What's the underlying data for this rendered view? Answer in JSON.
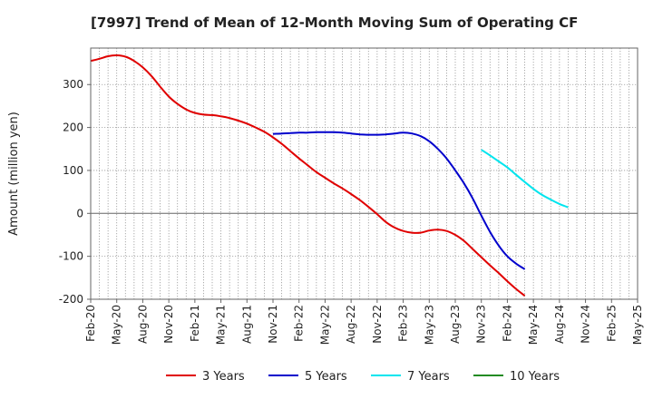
{
  "chart_data": {
    "type": "line",
    "title": "[7997]  Trend of Mean of 12-Month Moving Sum of Operating CF",
    "xlabel": "",
    "ylabel": "Amount (million yen)",
    "ylim": [
      -200,
      385
    ],
    "yticks": [
      -200,
      -100,
      0,
      100,
      200,
      300
    ],
    "x_tick_labels": [
      "Feb-20",
      "May-20",
      "Aug-20",
      "Nov-20",
      "Feb-21",
      "May-21",
      "Aug-21",
      "Nov-21",
      "Feb-22",
      "May-22",
      "Aug-22",
      "Nov-22",
      "Feb-23",
      "May-23",
      "Aug-23",
      "Nov-23",
      "Feb-24",
      "May-24",
      "Aug-24",
      "Nov-24",
      "Feb-25",
      "May-25"
    ],
    "x_start": "Feb-20",
    "x_end": "May-25",
    "grid": true,
    "legend_position": "bottom",
    "series": [
      {
        "name": "3 Years",
        "color": "#e00000",
        "start": "Feb-20",
        "values": [
          355,
          360,
          366,
          368,
          365,
          355,
          340,
          320,
          295,
          272,
          255,
          242,
          234,
          230,
          229,
          226,
          222,
          216,
          209,
          200,
          190,
          177,
          162,
          145,
          128,
          112,
          96,
          83,
          70,
          58,
          45,
          31,
          15,
          -2,
          -20,
          -33,
          -41,
          -45,
          -45,
          -40,
          -38,
          -41,
          -50,
          -64,
          -83,
          -102,
          -121,
          -139,
          -158,
          -176,
          -192
        ]
      },
      {
        "name": "5 Years",
        "color": "#0000cc",
        "start": "Nov-21",
        "values": [
          185,
          186,
          187,
          188,
          188,
          189,
          189,
          189,
          188,
          186,
          184,
          183,
          183,
          184,
          186,
          188,
          186,
          180,
          168,
          150,
          128,
          100,
          70,
          35,
          -5,
          -43,
          -75,
          -100,
          -117,
          -130
        ]
      },
      {
        "name": "7 Years",
        "color": "#00e5ee",
        "start": "Nov-23",
        "values": [
          148,
          135,
          121,
          107,
          90,
          73,
          57,
          43,
          32,
          22,
          14
        ]
      },
      {
        "name": "10 Years",
        "color": "#228b22",
        "start": "Nov-24",
        "values": []
      }
    ]
  }
}
